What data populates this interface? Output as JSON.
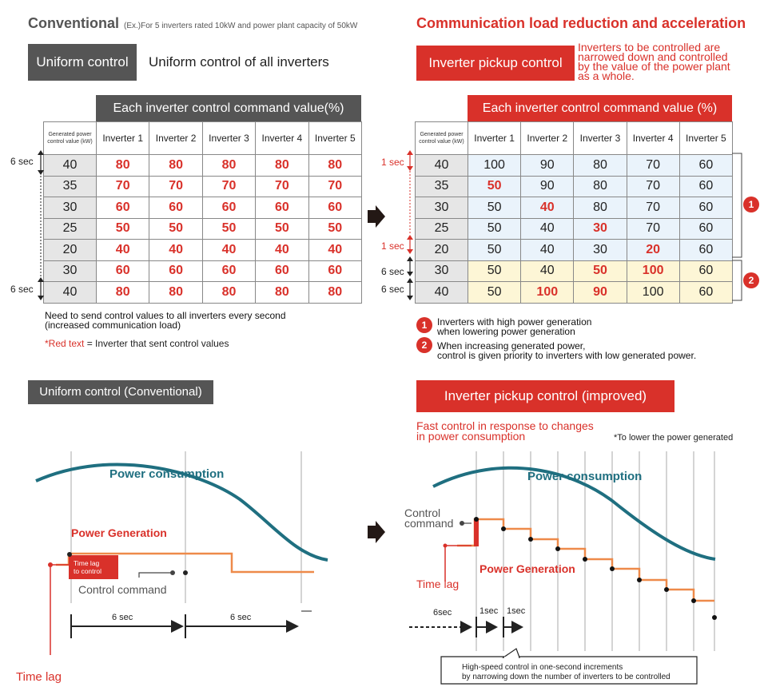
{
  "left": {
    "title": "Conventional",
    "subtitle": "(Ex.)For 5 inverters rated 10kW and power plant capacity of 50kW",
    "badge": "Uniform control",
    "badge_desc": "Uniform control of all inverters",
    "table_header": "Each inverter control command value(%)",
    "row_label": "Generated power control value (kW)",
    "columns": [
      "Inverter 1",
      "Inverter 2",
      "Inverter 3",
      "Inverter 4",
      "Inverter 5"
    ],
    "rows": [
      {
        "kw": "40",
        "vals": [
          "80",
          "80",
          "80",
          "80",
          "80"
        ]
      },
      {
        "kw": "35",
        "vals": [
          "70",
          "70",
          "70",
          "70",
          "70"
        ]
      },
      {
        "kw": "30",
        "vals": [
          "60",
          "60",
          "60",
          "60",
          "60"
        ]
      },
      {
        "kw": "25",
        "vals": [
          "50",
          "50",
          "50",
          "50",
          "50"
        ]
      },
      {
        "kw": "20",
        "vals": [
          "40",
          "40",
          "40",
          "40",
          "40"
        ]
      },
      {
        "kw": "30",
        "vals": [
          "60",
          "60",
          "60",
          "60",
          "60"
        ]
      },
      {
        "kw": "40",
        "vals": [
          "80",
          "80",
          "80",
          "80",
          "80"
        ]
      }
    ],
    "sec_label_top": "6 sec",
    "sec_label_bottom": "6 sec",
    "note_line1": "Need to send control values to all inverters every second",
    "note_line2": "(increased communication load)",
    "note_star": "*",
    "note_red": "Red text",
    "note_rest": " = Inverter that sent control values"
  },
  "right": {
    "title": "Communication load reduction and acceleration",
    "badge": "Inverter pickup control",
    "badge_desc": [
      "Inverters to be controlled are",
      "narrowed down and controlled",
      "by the value of the power plant",
      "as a whole."
    ],
    "table_header": "Each inverter control command value (%)",
    "row_label": "Generated power control value (kW)",
    "columns": [
      "Inverter 1",
      "Inverter 2",
      "Inverter 3",
      "Inverter 4",
      "Inverter 5"
    ],
    "rows": [
      {
        "kw": "40",
        "vals": [
          "100",
          "90",
          "80",
          "70",
          "60"
        ],
        "hl": [
          false,
          false,
          false,
          false,
          false
        ]
      },
      {
        "kw": "35",
        "vals": [
          "50",
          "90",
          "80",
          "70",
          "60"
        ],
        "hl": [
          true,
          false,
          false,
          false,
          false
        ]
      },
      {
        "kw": "30",
        "vals": [
          "50",
          "40",
          "80",
          "70",
          "60"
        ],
        "hl": [
          false,
          true,
          false,
          false,
          false
        ]
      },
      {
        "kw": "25",
        "vals": [
          "50",
          "40",
          "30",
          "70",
          "60"
        ],
        "hl": [
          false,
          false,
          true,
          false,
          false
        ]
      },
      {
        "kw": "20",
        "vals": [
          "50",
          "40",
          "30",
          "20",
          "60"
        ],
        "hl": [
          false,
          false,
          false,
          true,
          false
        ]
      },
      {
        "kw": "30",
        "vals": [
          "50",
          "40",
          "50",
          "100",
          "60"
        ],
        "hl": [
          false,
          false,
          true,
          true,
          false
        ]
      },
      {
        "kw": "40",
        "vals": [
          "50",
          "100",
          "90",
          "100",
          "60"
        ],
        "hl": [
          false,
          true,
          true,
          false,
          false
        ]
      }
    ],
    "sec_1a": "1 sec",
    "sec_1b": "1 sec",
    "sec_6a": "6 sec",
    "sec_6b": "6 sec",
    "marker1": "1",
    "marker2": "2",
    "legend1_l1": "Inverters with high power generation",
    "legend1_l2": "when lowering power generation",
    "legend2_l1": "When increasing generated power,",
    "legend2_l2": "control is given priority to inverters with low generated power."
  },
  "bottom_left": {
    "badge": "Uniform control (Conventional)",
    "power_consumption": "Power consumption",
    "power_generation": "Power Generation",
    "time_lag_box_l1": "Time lag",
    "time_lag_box_l2": "to control",
    "control_command": "Control command",
    "interval1": "6 sec",
    "interval2": "6 sec",
    "time_lag": "Time lag"
  },
  "bottom_right": {
    "badge": "Inverter pickup control (improved)",
    "fast_l1": "Fast control in response to changes",
    "fast_l2": "in power consumption",
    "footnote": "*To lower the power generated",
    "power_consumption": "Power consumption",
    "control_l1": "Control",
    "control_l2": "command",
    "power_generation": "Power Generation",
    "time_lag": "Time lag",
    "interval_6": "6sec",
    "interval_1a": "1sec",
    "interval_1b": "1sec",
    "callout_l1": "High-speed control in one-second increments",
    "callout_l2": "by narrowing down the number of inverters to be controlled"
  },
  "colors": {
    "red": "#d9312a",
    "dark": "#555555",
    "teal": "#1f6f80",
    "orange": "#ee8a4a",
    "blue_cell": "#eaf3fb",
    "yellow_cell": "#fdf6d6"
  }
}
